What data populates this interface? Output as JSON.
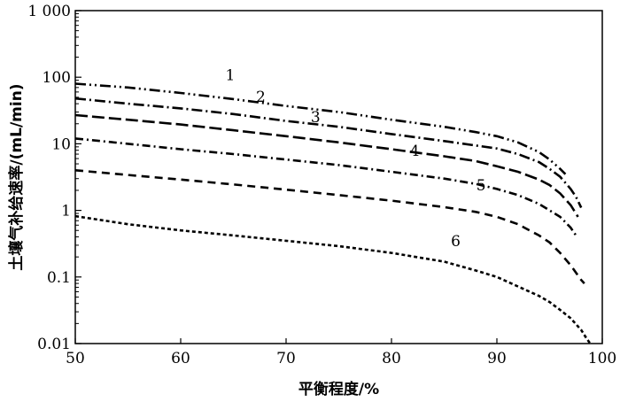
{
  "chart_data": {
    "type": "line",
    "xlabel": "平衡程度/%",
    "ylabel": "土壤气补给速率/(mL/min)",
    "xlim": [
      50,
      100
    ],
    "ylim": [
      0.01,
      1000
    ],
    "yscale": "log",
    "xticks": [
      50,
      60,
      70,
      80,
      90,
      100
    ],
    "xtick_labels": [
      "50",
      "60",
      "70",
      "80",
      "90",
      "100"
    ],
    "yticks": [
      0.01,
      0.1,
      1,
      10,
      100,
      1000
    ],
    "ytick_labels": [
      "0.01",
      "0.1",
      "1",
      "10",
      "100",
      "1 000"
    ],
    "grid": false,
    "series": [
      {
        "name": "1",
        "dash": "12,4,2,4,2,4",
        "points": [
          [
            50,
            80
          ],
          [
            55,
            70
          ],
          [
            60,
            58
          ],
          [
            65,
            47
          ],
          [
            70,
            37
          ],
          [
            75,
            30
          ],
          [
            80,
            23
          ],
          [
            85,
            18
          ],
          [
            88,
            15
          ],
          [
            90,
            13
          ],
          [
            92,
            10.5
          ],
          [
            94,
            7.5
          ],
          [
            95,
            5.8
          ],
          [
            96,
            4.2
          ],
          [
            96.5,
            3.5
          ]
        ]
      },
      {
        "name": "2",
        "dash": "12,4,2,4",
        "points": [
          [
            50,
            48
          ],
          [
            55,
            40
          ],
          [
            60,
            34
          ],
          [
            65,
            28
          ],
          [
            70,
            22
          ],
          [
            75,
            18
          ],
          [
            80,
            14
          ],
          [
            85,
            11
          ],
          [
            90,
            8.5
          ],
          [
            92,
            7
          ],
          [
            94,
            5.3
          ],
          [
            95,
            4.2
          ],
          [
            96,
            3.2
          ],
          [
            97,
            2.1
          ],
          [
            97.5,
            1.6
          ],
          [
            98,
            1.1
          ]
        ]
      },
      {
        "name": "3",
        "dash": "14,5",
        "points": [
          [
            50,
            27
          ],
          [
            55,
            23
          ],
          [
            60,
            19.5
          ],
          [
            65,
            16
          ],
          [
            70,
            13
          ],
          [
            75,
            10.5
          ],
          [
            80,
            8.3
          ],
          [
            85,
            6.5
          ],
          [
            88,
            5.5
          ],
          [
            90,
            4.6
          ],
          [
            92,
            3.8
          ],
          [
            94,
            2.9
          ],
          [
            95,
            2.4
          ],
          [
            96,
            1.8
          ],
          [
            97,
            1.2
          ],
          [
            97.7,
            0.8
          ]
        ]
      },
      {
        "name": "4",
        "dash": "9,4,2,4",
        "points": [
          [
            50,
            12
          ],
          [
            55,
            10
          ],
          [
            60,
            8.3
          ],
          [
            65,
            7
          ],
          [
            70,
            5.8
          ],
          [
            75,
            4.8
          ],
          [
            80,
            3.8
          ],
          [
            85,
            3
          ],
          [
            88,
            2.5
          ],
          [
            90,
            2.1
          ],
          [
            92,
            1.7
          ],
          [
            94,
            1.25
          ],
          [
            95,
            1
          ],
          [
            96,
            0.8
          ],
          [
            97,
            0.55
          ],
          [
            97.5,
            0.42
          ]
        ]
      },
      {
        "name": "5",
        "dash": "9,6",
        "points": [
          [
            50,
            4
          ],
          [
            55,
            3.4
          ],
          [
            60,
            2.9
          ],
          [
            65,
            2.45
          ],
          [
            70,
            2.05
          ],
          [
            75,
            1.7
          ],
          [
            80,
            1.4
          ],
          [
            85,
            1.12
          ],
          [
            88,
            0.95
          ],
          [
            90,
            0.8
          ],
          [
            92,
            0.62
          ],
          [
            94,
            0.42
          ],
          [
            95,
            0.33
          ],
          [
            96,
            0.23
          ],
          [
            97,
            0.15
          ],
          [
            98,
            0.09
          ],
          [
            98.3,
            0.08
          ]
        ]
      },
      {
        "name": "6",
        "dash": "4,3",
        "points": [
          [
            50,
            0.82
          ],
          [
            55,
            0.62
          ],
          [
            60,
            0.5
          ],
          [
            65,
            0.42
          ],
          [
            70,
            0.35
          ],
          [
            75,
            0.29
          ],
          [
            80,
            0.23
          ],
          [
            85,
            0.17
          ],
          [
            88,
            0.125
          ],
          [
            90,
            0.1
          ],
          [
            92,
            0.072
          ],
          [
            94,
            0.052
          ],
          [
            95,
            0.042
          ],
          [
            96,
            0.032
          ],
          [
            97,
            0.024
          ],
          [
            98,
            0.016
          ],
          [
            98.5,
            0.012
          ],
          [
            98.9,
            0.0098
          ]
        ]
      }
    ],
    "curve_labels": [
      {
        "text": "1",
        "x": 64.7,
        "y": 90
      },
      {
        "text": "2",
        "x": 67.6,
        "y": 43
      },
      {
        "text": "3",
        "x": 72.8,
        "y": 21
      },
      {
        "text": "4",
        "x": 82.2,
        "y": 6.6
      },
      {
        "text": "5",
        "x": 88.5,
        "y": 2.0
      },
      {
        "text": "6",
        "x": 86.1,
        "y": 0.29
      }
    ]
  }
}
